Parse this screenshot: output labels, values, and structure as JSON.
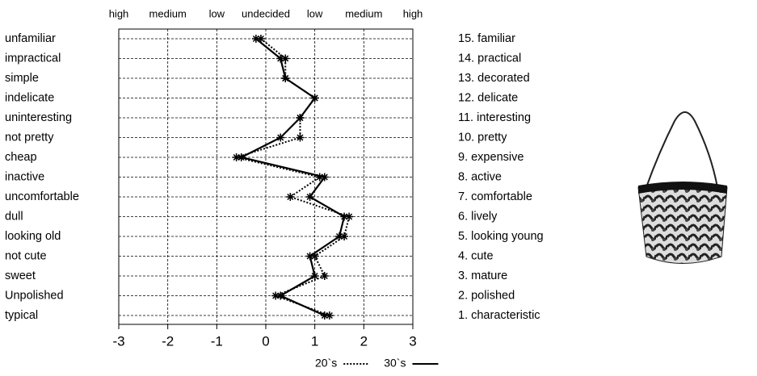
{
  "chart_data": {
    "type": "profile",
    "top_labels": [
      "high",
      "medium",
      "low",
      "undecided",
      "low",
      "medium",
      "high"
    ],
    "categories": [
      "unfamiliar",
      "impractical",
      "simple",
      "indelicate",
      "uninteresting",
      "not pretty",
      "cheap",
      "inactive",
      "uncomfortable",
      "dull",
      "looking old",
      "not cute",
      "sweet",
      "Unpolished",
      "typical"
    ],
    "right_labels": [
      "15. familiar",
      "14. practical",
      "13. decorated",
      "12. delicate",
      "11. interesting",
      "10. pretty",
      "9. expensive",
      "8. active",
      "7. comfortable",
      "6. lively",
      "5. looking young",
      "4. cute",
      "3. mature",
      "2. polished",
      "1. characteristic"
    ],
    "series": [
      {
        "name": "20`s",
        "color": "#000000",
        "line_style": "dotted",
        "values": [
          -0.1,
          0.4,
          0.4,
          1.0,
          0.7,
          0.7,
          -0.6,
          1.1,
          0.5,
          1.7,
          1.6,
          1.0,
          1.2,
          0.2,
          1.3
        ]
      },
      {
        "name": "30`s",
        "color": "#000000",
        "line_style": "solid",
        "values": [
          -0.2,
          0.3,
          0.4,
          1.0,
          0.7,
          0.3,
          -0.5,
          1.2,
          0.9,
          1.6,
          1.5,
          0.9,
          1.0,
          0.3,
          1.2
        ]
      }
    ],
    "xlim": [
      -3,
      3
    ],
    "xticks": [
      -3,
      -2,
      -1,
      0,
      1,
      2,
      3
    ],
    "grid": true
  }
}
